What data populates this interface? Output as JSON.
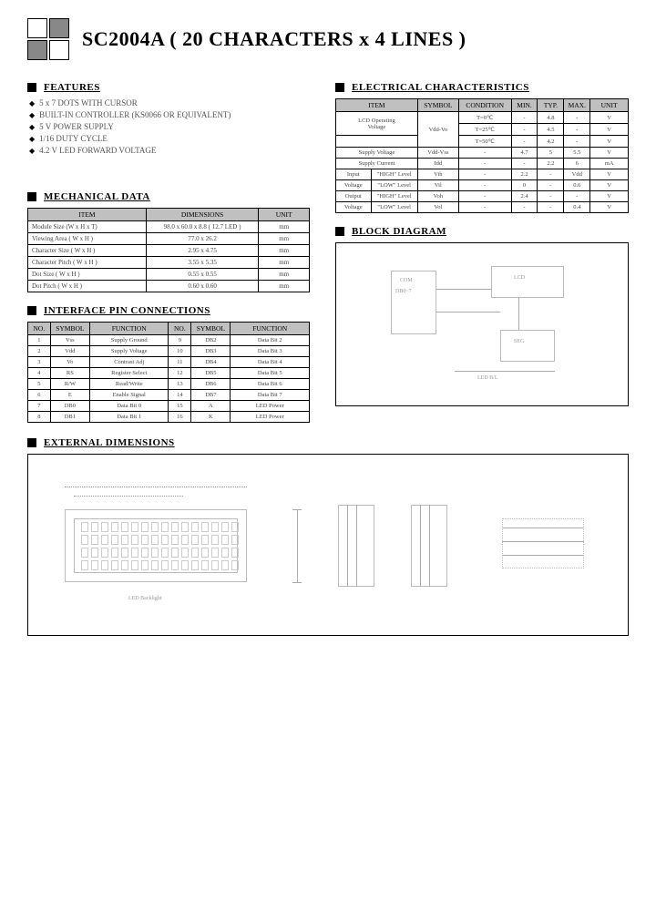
{
  "title": "SC2004A ( 20  CHARACTERS x 4 LINES )",
  "sections": {
    "features": "FEATURES",
    "mechanical": "MECHANICAL DATA",
    "interface": "INTERFACE PIN CONNECTIONS",
    "electrical": "ELECTRICAL CHARACTERISTICS",
    "block": "BLOCK DIAGRAM",
    "external": "EXTERNAL DIMENSIONS"
  },
  "features": [
    "5 x 7 DOTS WITH CURSOR",
    "BUILT-IN CONTROLLER (KS0066 OR EQUIVALENT)",
    "5 V POWER SUPPLY",
    "1/16 DUTY CYCLE",
    "4.2 V LED FORWARD VOLTAGE"
  ],
  "mechanical": {
    "headers": [
      "ITEM",
      "DIMENSIONS",
      "UNIT"
    ],
    "rows": [
      [
        "Module Size (W x H x T)",
        "98.0 x 60.0 x 8.8 ( 12.7 LED )",
        "mm"
      ],
      [
        "Viewing Area ( W x H )",
        "77.0 x 26.2",
        "mm"
      ],
      [
        "Character Size ( W x H )",
        "2.95 x 4.75",
        "mm"
      ],
      [
        "Character Pitch ( W x H )",
        "3.55 x 5.35",
        "mm"
      ],
      [
        "Dot Size ( W x H )",
        "0.55 x 0.55",
        "mm"
      ],
      [
        "Dot Pitch ( W x H )",
        "0.60 x 0.60",
        "mm"
      ]
    ]
  },
  "interface": {
    "headers": [
      "NO.",
      "SYMBOL",
      "FUNCTION",
      "NO.",
      "SYMBOL",
      "FUNCTION"
    ],
    "rows": [
      [
        "1",
        "Vss",
        "Supply Ground",
        "9",
        "DB2",
        "Data Bit 2"
      ],
      [
        "2",
        "Vdd",
        "Supply Voltage",
        "10",
        "DB3",
        "Data Bit 3"
      ],
      [
        "3",
        "Vo",
        "Contrast Adj",
        "11",
        "DB4",
        "Data Bit 4"
      ],
      [
        "4",
        "RS",
        "Register Select",
        "12",
        "DB5",
        "Data Bit 5"
      ],
      [
        "5",
        "R/W",
        "Read/Write",
        "13",
        "DB6",
        "Data Bit 6"
      ],
      [
        "6",
        "E",
        "Enable Signal",
        "14",
        "DB7",
        "Data Bit 7"
      ],
      [
        "7",
        "DB0",
        "Data Bit 0",
        "15",
        "A",
        "LED Power"
      ],
      [
        "8",
        "DB1",
        "Data Bit 1",
        "16",
        "K",
        "LED Power"
      ]
    ]
  },
  "electrical": {
    "headers": [
      "ITEM",
      "SYMBOL",
      "CONDITION",
      "MIN.",
      "TYP.",
      "MAX.",
      "UNIT"
    ],
    "rows": [
      {
        "c0": "LCD Operating",
        "c0rs": 3,
        "c1": "",
        "c1rs": 3,
        "c1b": "Vdd-Vo",
        "c2": "T=0℃",
        "c3": "-",
        "c4": "4.8",
        "c5": "-",
        "c6": "V"
      },
      {
        "c2": "T=25℃",
        "c3": "-",
        "c4": "4.5",
        "c5": "-",
        "c6": "V"
      },
      {
        "c0b": "Voltage",
        "c2": "T=50℃",
        "c3": "-",
        "c4": "4.2",
        "c5": "-",
        "c6": "V"
      },
      {
        "c0": "Supply Voltage",
        "c1": "Vdd-Vss",
        "c2": "-",
        "c3": "4.7",
        "c4": "5",
        "c5": "5.5",
        "c6": "V"
      },
      {
        "c0": "Supply Current",
        "c1": "Idd",
        "c2": "-",
        "c3": "-",
        "c4": "2.2",
        "c5": "6",
        "c6": "mA"
      },
      {
        "c0a": "Input",
        "c0b": "\"HIGH\" Level",
        "c1": "Vih",
        "c2": "-",
        "c3": "2.2",
        "c4": "-",
        "c5": "Vdd",
        "c6": "V"
      },
      {
        "c0a": "Voltage",
        "c0b": "\"LOW\" Level",
        "c1": "Vil",
        "c2": "-",
        "c3": "0",
        "c4": "-",
        "c5": "0.6",
        "c6": "V"
      },
      {
        "c0a": "Output",
        "c0b": "\"HIGH\" Level",
        "c1": "Voh",
        "c2": "-",
        "c3": "2.4",
        "c4": "-",
        "c5": "-",
        "c6": "V"
      },
      {
        "c0a": "Voltage",
        "c0b": "\"LOW\" Level",
        "c1": "Vol",
        "c2": "-",
        "c3": "-",
        "c4": "-",
        "c5": "0.4",
        "c6": "V"
      }
    ]
  },
  "block_labels": {
    "l1": "LCD",
    "l2": "DB0~7",
    "l3": "COM",
    "l4": "SEG",
    "l5": "LED B/L"
  },
  "ext_label": "LED Backlight",
  "colors": {
    "header_bg": "#c0c0c0",
    "text_muted": "#555555",
    "border": "#000000"
  }
}
